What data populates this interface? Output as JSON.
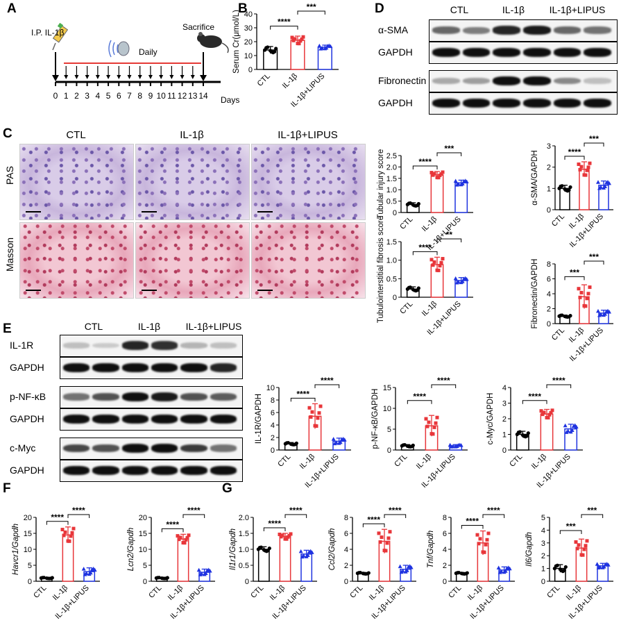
{
  "panels": {
    "A": "A",
    "B": "B",
    "C": "C",
    "D": "D",
    "E": "E",
    "F": "F",
    "G": "G"
  },
  "colors": {
    "ctl": "#000000",
    "il1b": "#e8363a",
    "lipus": "#1f33e0"
  },
  "groups": [
    "CTL",
    "IL-1β",
    "IL-1β+LIPUS"
  ],
  "timeline": {
    "ip_label": "I.P. IL-1β",
    "daily_label": "Daily",
    "sacrifice_label": "Sacrifice",
    "days_label": "Days",
    "ticks": [
      "0",
      "1",
      "2",
      "3",
      "4",
      "5",
      "6",
      "7",
      "8",
      "9",
      "10",
      "11",
      "12",
      "13",
      "14"
    ]
  },
  "histology": {
    "rows": [
      "PAS",
      "Masson"
    ],
    "cols": [
      "CTL",
      "IL-1β",
      "IL-1β+LIPUS"
    ]
  },
  "blots_D": [
    "α-SMA",
    "GAPDH",
    "Fibronectin",
    "GAPDH"
  ],
  "blots_E": [
    "IL-1R",
    "GAPDH",
    "p-NF-κB",
    "GAPDH",
    "c-Myc",
    "GAPDH"
  ],
  "chart_data": [
    {
      "id": "B",
      "type": "bar",
      "ylabel": "Serum Cr(μmol/L)",
      "ylim": [
        0,
        40
      ],
      "yticks": [
        "0",
        "10",
        "20",
        "30",
        "40"
      ],
      "categories": [
        "CTL",
        "IL-1β",
        "IL-1β+LIPUS"
      ],
      "values": [
        14,
        21,
        16
      ],
      "errors": [
        2.5,
        3,
        1.5
      ],
      "sig": [
        {
          "a": 0,
          "b": 1,
          "t": "****"
        },
        {
          "a": 1,
          "b": 2,
          "t": "***"
        }
      ]
    },
    {
      "id": "tubinj",
      "type": "bar",
      "ylabel": "Tubular injury score",
      "ylim": [
        0,
        2.5
      ],
      "yticks": [
        "0",
        "0.5",
        "1.0",
        "1.5",
        "2.0",
        "2.5"
      ],
      "categories": [
        "CTL",
        "IL-1β",
        "IL-1β+LIPUS"
      ],
      "values": [
        0.35,
        1.65,
        1.3
      ],
      "errors": [
        0.08,
        0.15,
        0.12
      ],
      "sig": [
        {
          "a": 0,
          "b": 1,
          "t": "****"
        },
        {
          "a": 1,
          "b": 2,
          "t": "***"
        }
      ]
    },
    {
      "id": "tubfib",
      "type": "bar",
      "ylabel": "Tubulointerstitial fibrosis score",
      "ylim": [
        0,
        1.5
      ],
      "yticks": [
        "0",
        "0.5",
        "1.0",
        "1.5"
      ],
      "categories": [
        "CTL",
        "IL-1β",
        "IL-1β+LIPUS"
      ],
      "values": [
        0.22,
        0.88,
        0.45
      ],
      "errors": [
        0.06,
        0.2,
        0.08
      ],
      "sig": [
        {
          "a": 0,
          "b": 1,
          "t": "****"
        },
        {
          "a": 1,
          "b": 2,
          "t": "**"
        }
      ]
    },
    {
      "id": "asma",
      "type": "bar",
      "ylabel": "α-SMA/GAPDH",
      "ylim": [
        0,
        3
      ],
      "yticks": [
        "0",
        "1",
        "2",
        "3"
      ],
      "categories": [
        "CTL",
        "IL-1β",
        "IL-1β+LIPUS"
      ],
      "values": [
        1.0,
        1.9,
        1.15
      ],
      "errors": [
        0.15,
        0.35,
        0.2
      ],
      "sig": [
        {
          "a": 0,
          "b": 1,
          "t": "****"
        },
        {
          "a": 1,
          "b": 2,
          "t": "***"
        }
      ]
    },
    {
      "id": "fn",
      "type": "bar",
      "ylabel": "Fibronectin/GAPDH",
      "ylim": [
        0,
        8
      ],
      "yticks": [
        "0",
        "2",
        "4",
        "6",
        "8"
      ],
      "categories": [
        "CTL",
        "IL-1β",
        "IL-1β+LIPUS"
      ],
      "values": [
        1.0,
        3.6,
        1.4
      ],
      "errors": [
        0.15,
        1.6,
        0.4
      ],
      "sig": [
        {
          "a": 0,
          "b": 1,
          "t": "***"
        },
        {
          "a": 1,
          "b": 2,
          "t": "***"
        }
      ]
    },
    {
      "id": "il1r",
      "type": "bar",
      "ylabel": "IL-1R/GAPDH",
      "ylim": [
        0,
        10
      ],
      "yticks": [
        "0",
        "2",
        "4",
        "6",
        "8",
        "10"
      ],
      "categories": [
        "CTL",
        "IL-1β",
        "IL-1β+LIPUS"
      ],
      "values": [
        1.0,
        5.4,
        1.4
      ],
      "errors": [
        0.2,
        2.0,
        0.5
      ],
      "sig": [
        {
          "a": 0,
          "b": 1,
          "t": "****"
        },
        {
          "a": 1,
          "b": 2,
          "t": "****"
        }
      ]
    },
    {
      "id": "pnfkb",
      "type": "bar",
      "ylabel": "p-NF-κB/GAPDH",
      "ylim": [
        0,
        15
      ],
      "yticks": [
        "0",
        "5",
        "10",
        "15"
      ],
      "categories": [
        "CTL",
        "IL-1β",
        "IL-1β+LIPUS"
      ],
      "values": [
        1.0,
        5.8,
        1.0
      ],
      "errors": [
        0.3,
        2.5,
        0.3
      ],
      "sig": [
        {
          "a": 0,
          "b": 1,
          "t": "****"
        },
        {
          "a": 1,
          "b": 2,
          "t": "****"
        }
      ]
    },
    {
      "id": "cmyc",
      "type": "bar",
      "ylabel": "c-Myc/GAPDH",
      "ylim": [
        0,
        4
      ],
      "yticks": [
        "0",
        "1",
        "2",
        "3",
        "4"
      ],
      "categories": [
        "CTL",
        "IL-1β",
        "IL-1β+LIPUS"
      ],
      "values": [
        1.0,
        2.3,
        1.35
      ],
      "errors": [
        0.2,
        0.3,
        0.3
      ],
      "sig": [
        {
          "a": 0,
          "b": 1,
          "t": "****"
        },
        {
          "a": 1,
          "b": 2,
          "t": "****"
        }
      ]
    },
    {
      "id": "havcr1",
      "type": "bar",
      "ylabel": "Havcr1/Gapdh",
      "ylim": [
        0,
        20
      ],
      "yticks": [
        "0",
        "5",
        "10",
        "15",
        "20"
      ],
      "categories": [
        "CTL",
        "IL-1β",
        "IL-1β+LIPUS"
      ],
      "values": [
        1.0,
        14.5,
        3.0
      ],
      "errors": [
        0.2,
        2.5,
        1.2
      ],
      "sig": [
        {
          "a": 0,
          "b": 1,
          "t": "****"
        },
        {
          "a": 1,
          "b": 2,
          "t": "****"
        }
      ]
    },
    {
      "id": "lcn2",
      "type": "bar",
      "ylabel": "Lcn2/Gapdh",
      "ylim": [
        0,
        20
      ],
      "yticks": [
        "0",
        "5",
        "10",
        "15",
        "20"
      ],
      "categories": [
        "CTL",
        "IL-1β",
        "IL-1β+LIPUS"
      ],
      "values": [
        1.0,
        13.2,
        2.8
      ],
      "errors": [
        0.2,
        1.5,
        1.0
      ],
      "sig": [
        {
          "a": 0,
          "b": 1,
          "t": "****"
        },
        {
          "a": 1,
          "b": 2,
          "t": "****"
        }
      ]
    },
    {
      "id": "il1r1",
      "type": "bar",
      "ylabel": "Il1r1/Gapdh",
      "ylim": [
        0,
        2.0
      ],
      "yticks": [
        "0",
        "0.5",
        "1.0",
        "1.5",
        "2.0"
      ],
      "categories": [
        "CTL",
        "IL-1β",
        "IL-1β+LIPUS"
      ],
      "values": [
        1.0,
        1.4,
        0.85
      ],
      "errors": [
        0.08,
        0.1,
        0.12
      ],
      "sig": [
        {
          "a": 0,
          "b": 1,
          "t": "****"
        },
        {
          "a": 1,
          "b": 2,
          "t": "****"
        }
      ]
    },
    {
      "id": "ccl2",
      "type": "bar",
      "ylabel": "Ccl2/Gapdh",
      "ylim": [
        0,
        8
      ],
      "yticks": [
        "0",
        "2",
        "4",
        "6",
        "8"
      ],
      "categories": [
        "CTL",
        "IL-1β",
        "IL-1β+LIPUS"
      ],
      "values": [
        1.0,
        5.0,
        1.5
      ],
      "errors": [
        0.1,
        1.5,
        0.5
      ],
      "sig": [
        {
          "a": 0,
          "b": 1,
          "t": "****"
        },
        {
          "a": 1,
          "b": 2,
          "t": "****"
        }
      ]
    },
    {
      "id": "tnf",
      "type": "bar",
      "ylabel": "Tnf/Gapdh",
      "ylim": [
        0,
        8
      ],
      "yticks": [
        "0",
        "2",
        "4",
        "6",
        "8"
      ],
      "categories": [
        "CTL",
        "IL-1β",
        "IL-1β+LIPUS"
      ],
      "values": [
        1.0,
        4.8,
        1.4
      ],
      "errors": [
        0.1,
        1.5,
        0.4
      ],
      "sig": [
        {
          "a": 0,
          "b": 1,
          "t": "****"
        },
        {
          "a": 1,
          "b": 2,
          "t": "****"
        }
      ]
    },
    {
      "id": "il6",
      "type": "bar",
      "ylabel": "Il6/Gapdh",
      "ylim": [
        0,
        5
      ],
      "yticks": [
        "0",
        "1",
        "2",
        "3",
        "4",
        "5"
      ],
      "categories": [
        "CTL",
        "IL-1β",
        "IL-1β+LIPUS"
      ],
      "values": [
        1.0,
        2.6,
        1.2
      ],
      "errors": [
        0.3,
        0.7,
        0.2
      ],
      "sig": [
        {
          "a": 0,
          "b": 1,
          "t": "***"
        },
        {
          "a": 1,
          "b": 2,
          "t": "***"
        }
      ]
    }
  ]
}
